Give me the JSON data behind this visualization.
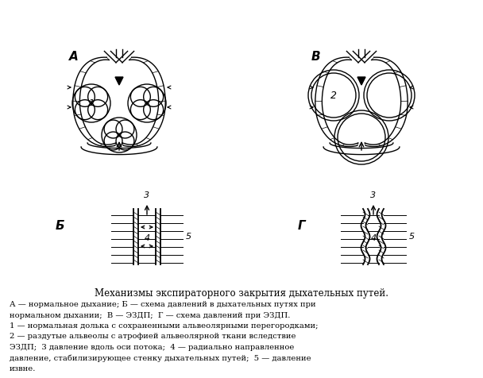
{
  "title": "Механизмы экспираторного закрытия дыхательных путей.",
  "caption_lines": [
    "А — нормальное дыхание; Б — схема давлений в дыхательных путях при",
    "нормальном дыхании;  В — ЭЗДП;  Г — схема давлений при ЭЗДП.",
    "1 — нормальная долька с сохраненными альвеолярными перегородками;",
    "2 — раздутые альвеолы с атрофией альвеолярной ткани вследствие",
    "ЭЗДП;  3 давление вдоль оси потока;  4 — радиально направленное",
    "давление, стабилизирующее стенку дыхательных путей;  5 — давление",
    "извне."
  ],
  "bg_color": "#ffffff"
}
